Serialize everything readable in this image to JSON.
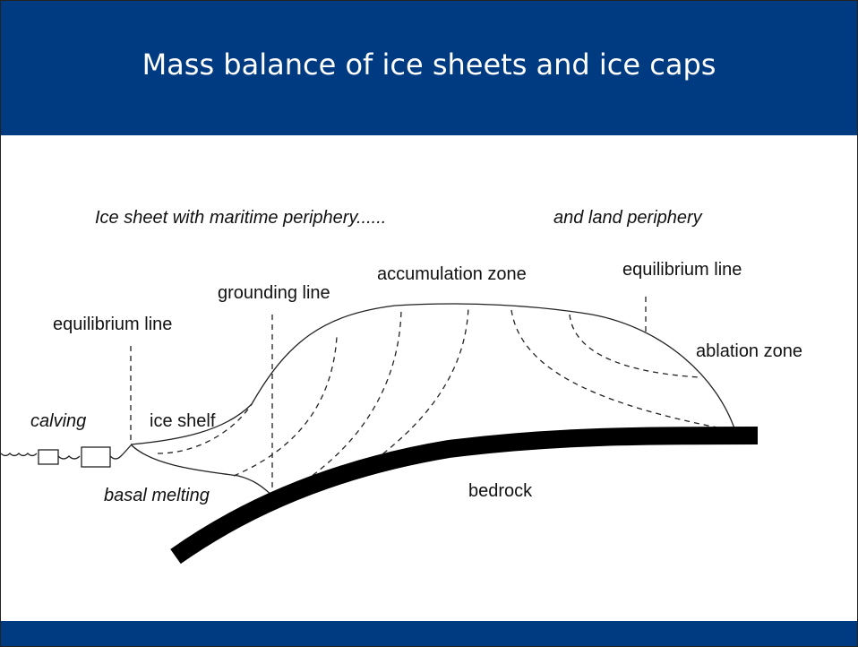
{
  "header": {
    "title": "Mass balance of ice sheets and ice caps"
  },
  "diagram": {
    "caption_left": "Ice sheet with maritime periphery......",
    "caption_right": "and land periphery",
    "labels": {
      "accumulation_zone": "accumulation zone",
      "equilibrium_line_right": "equilibrium line",
      "grounding_line": "grounding line",
      "equilibrium_line_left": "equilibrium line",
      "ablation_zone": "ablation zone",
      "calving": "calving",
      "ice_shelf": "ice shelf",
      "basal_melting": "basal melting",
      "bedrock": "bedrock"
    }
  }
}
